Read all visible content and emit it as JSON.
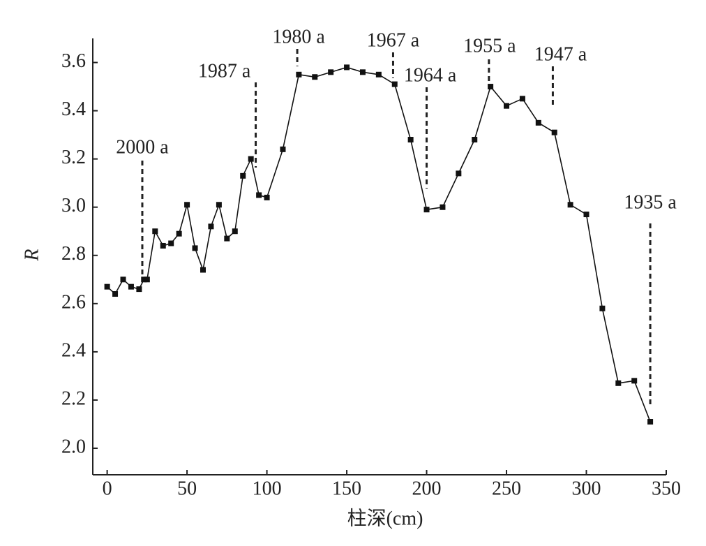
{
  "chart_data": {
    "type": "line",
    "x_label": "柱深(cm)",
    "y_label": "R",
    "x": [
      0,
      5,
      10,
      15,
      20,
      23,
      25,
      30,
      35,
      40,
      45,
      50,
      55,
      60,
      65,
      70,
      75,
      80,
      85,
      90,
      95,
      100,
      110,
      120,
      130,
      140,
      150,
      160,
      170,
      180,
      190,
      200,
      210,
      220,
      230,
      240,
      250,
      260,
      270,
      280,
      290,
      300,
      310,
      320,
      330,
      340
    ],
    "values": [
      2.67,
      2.64,
      2.7,
      2.67,
      2.66,
      2.7,
      2.7,
      2.9,
      2.84,
      2.85,
      2.89,
      3.01,
      2.83,
      2.74,
      2.92,
      3.01,
      2.87,
      2.9,
      3.13,
      3.2,
      3.05,
      3.04,
      3.24,
      3.55,
      3.54,
      3.56,
      3.58,
      3.56,
      3.55,
      3.51,
      3.28,
      2.99,
      3.0,
      3.14,
      3.28,
      3.5,
      3.42,
      3.45,
      3.35,
      3.31,
      3.01,
      2.97,
      2.58,
      2.27,
      2.28,
      2.11
    ],
    "color": "#111111",
    "xlim": [
      -9,
      350
    ],
    "ylim": [
      1.89,
      3.7
    ],
    "xticks": [
      0,
      50,
      100,
      150,
      200,
      250,
      300,
      350
    ],
    "yticks": [
      {
        "value": 2.0,
        "label": "2.0"
      },
      2.2,
      2.4,
      2.6,
      2.8,
      {
        "value": 3.0,
        "label": "3.0"
      },
      3.2,
      3.4,
      3.6
    ],
    "annotations": [
      {
        "text": "2000 a",
        "x": 22
      },
      {
        "text": "1987 a",
        "x": 93
      },
      {
        "text": "1980 a",
        "x": 119
      },
      {
        "text": "1967 a",
        "x": 179
      },
      {
        "text": "1964 a",
        "x": 200
      },
      {
        "text": "1955 a",
        "x": 239
      },
      {
        "text": "1947 a",
        "x": 279
      },
      {
        "text": "1935 a",
        "x": 340
      }
    ]
  }
}
